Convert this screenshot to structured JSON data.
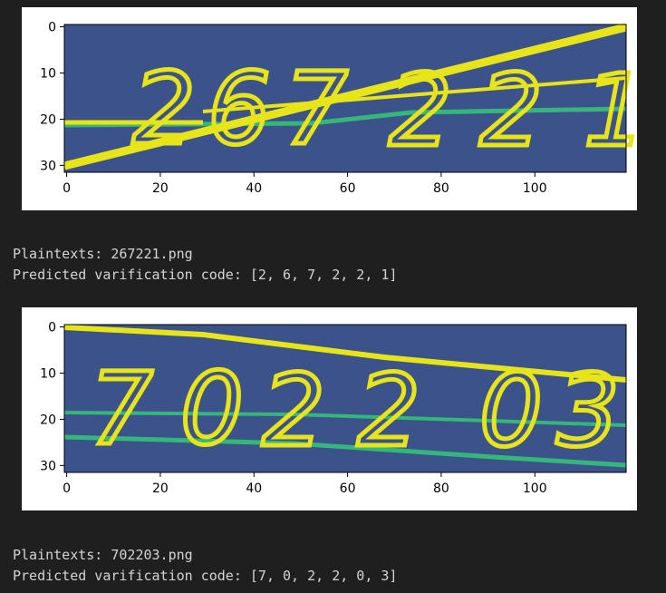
{
  "outputs": [
    {
      "plaintexts_label": "Plaintexts: 267221.png",
      "predicted_label": "Predicted varification code: [2, 6, 7, 2, 2, 1]",
      "image_digits": [
        "2",
        "6",
        "7",
        "2",
        "2",
        "1"
      ],
      "chart_data": {
        "type": "heatmap",
        "colormap": "viridis",
        "x_ticks": [
          0,
          20,
          40,
          60,
          80,
          100
        ],
        "y_ticks": [
          0,
          10,
          20,
          30
        ],
        "xlim": [
          0,
          119
        ],
        "ylim": [
          31,
          0
        ]
      }
    },
    {
      "plaintexts_label": "Plaintexts: 702203.png",
      "predicted_label": "Predicted varification code: [7, 0, 2, 2, 0, 3]",
      "image_digits": [
        "7",
        "0",
        "2",
        "2",
        "0",
        "3"
      ],
      "chart_data": {
        "type": "heatmap",
        "colormap": "viridis",
        "x_ticks": [
          0,
          20,
          40,
          60,
          80,
          100
        ],
        "y_ticks": [
          0,
          10,
          20,
          30
        ],
        "xlim": [
          0,
          119
        ],
        "ylim": [
          31,
          0
        ]
      }
    }
  ],
  "colors": {
    "page_bg": "#1f1f1f",
    "image_bg": "#3b528b",
    "stroke_yellow": "#e7e419",
    "line_green": "#35b779",
    "text": "#d4d4d4"
  }
}
